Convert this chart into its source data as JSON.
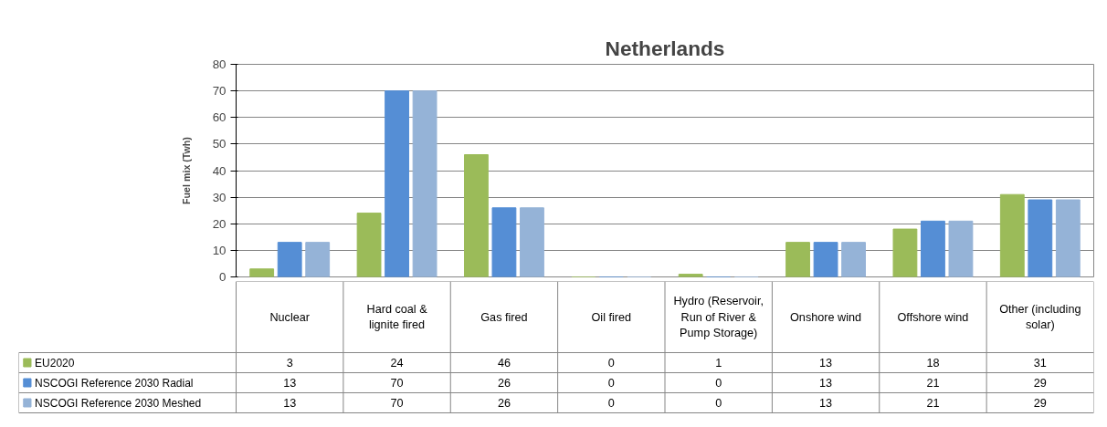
{
  "chart_data": {
    "type": "bar",
    "title": "Netherlands",
    "ylabel": "Fuel mix (Twh)",
    "categories": [
      "Nuclear",
      "Hard coal & lignite fired",
      "Gas fired",
      "Oil fired",
      "Hydro (Reservoir, Run of River & Pump Storage)",
      "Onshore wind",
      "Offshore wind",
      "Other (including solar)"
    ],
    "series": [
      {
        "name": "EU2020",
        "color": "#9bbb59",
        "values": [
          3,
          24,
          46,
          0,
          1,
          13,
          18,
          31
        ]
      },
      {
        "name": "NSCOGI Reference 2030 Radial",
        "color": "#558ed5",
        "values": [
          13,
          70,
          26,
          0,
          0,
          13,
          21,
          29
        ]
      },
      {
        "name": "NSCOGI Reference 2030 Meshed",
        "color": "#95b3d7",
        "values": [
          13,
          70,
          26,
          0,
          0,
          13,
          21,
          29
        ]
      }
    ],
    "ylim": [
      0,
      80
    ],
    "yticks": [
      0,
      10,
      20,
      30,
      40,
      50,
      60,
      70,
      80
    ],
    "grid": "y",
    "legend": "bottom left",
    "data_labels": true
  }
}
